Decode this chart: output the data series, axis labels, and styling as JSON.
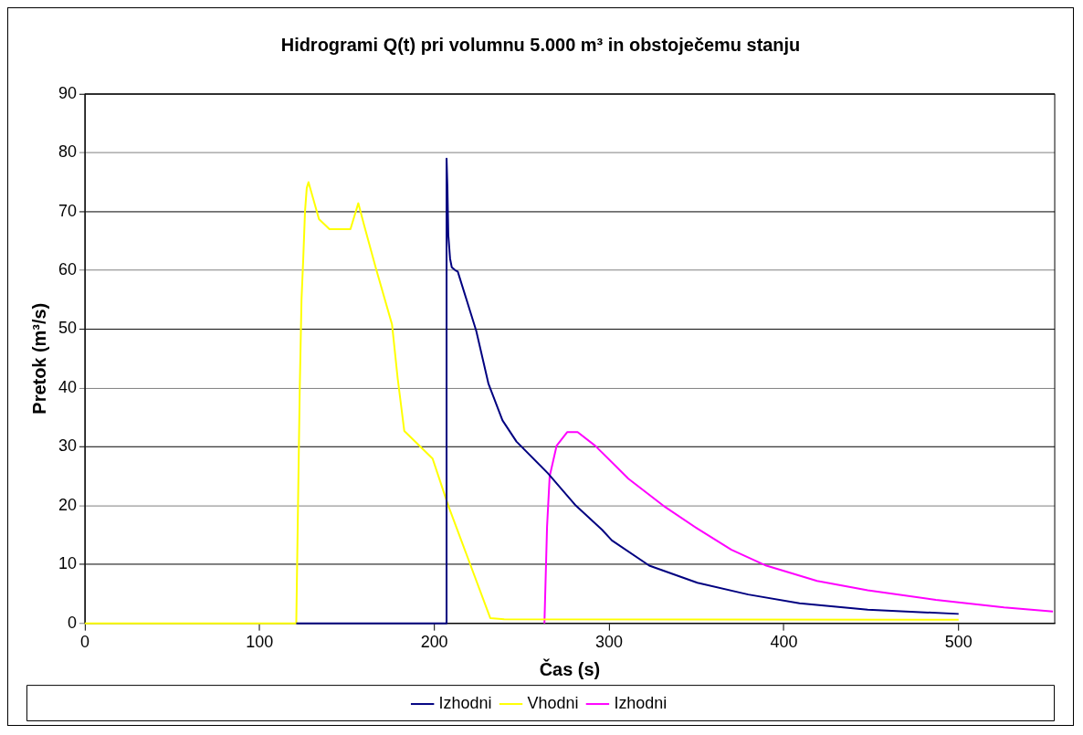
{
  "chart_data": {
    "type": "line",
    "title": "Hidrogrami Q(t) pri volumnu 5.000 m³ in obstoječemu stanju",
    "xlabel": "Čas (s)",
    "ylabel": "Pretok (m³/s)",
    "xlim": [
      0,
      555
    ],
    "xticks": [
      0,
      100,
      200,
      300,
      400,
      500
    ],
    "ylim": [
      0,
      90
    ],
    "yticks": [
      0,
      10,
      20,
      30,
      40,
      50,
      60,
      70,
      80,
      90
    ],
    "grid": "y",
    "legend": "bottom",
    "marker": "none",
    "line_style": "solid",
    "series": [
      {
        "name": "Izhodni",
        "color": "#000080",
        "x": [
          121,
          207,
          207,
          207.5,
          208,
          209,
          210,
          212,
          213.4,
          224,
          231,
          239,
          247,
          265,
          281,
          296,
          301.6,
          323,
          350.5,
          379.6,
          409,
          448,
          500
        ],
        "values": [
          0,
          0,
          79,
          74,
          66,
          62,
          60.5,
          60,
          59.8,
          49.7,
          40.7,
          34.5,
          30.9,
          25.5,
          20,
          15.9,
          14.1,
          9.8,
          6.9,
          4.9,
          3.4,
          2.3,
          1.6
        ]
      },
      {
        "name": "Vhodni",
        "color": "#ffff00",
        "x": [
          0,
          121,
          122,
          123,
          124,
          125,
          126,
          127,
          128,
          134,
          140,
          152,
          156.5,
          159.7,
          166.7,
          175.8,
          179,
          182.8,
          199,
          208,
          232,
          240,
          500
        ],
        "values": [
          0,
          0,
          20,
          40,
          55,
          62,
          70,
          74,
          75,
          68.7,
          67,
          67,
          71.4,
          67.8,
          60.2,
          50.8,
          41.7,
          32.7,
          28,
          20,
          0.9,
          0.7,
          0.6
        ]
      },
      {
        "name": "Izhodni",
        "color": "#ff00ff",
        "x": [
          263,
          264.5,
          266,
          270,
          276,
          282,
          292,
          311,
          331,
          350.5,
          370,
          390,
          419,
          448,
          487,
          526,
          554
        ],
        "values": [
          0,
          16.4,
          25,
          30.2,
          32.5,
          32.5,
          30.2,
          24.6,
          20,
          16.1,
          12.5,
          9.8,
          7.2,
          5.6,
          4,
          2.7,
          2
        ]
      }
    ]
  }
}
